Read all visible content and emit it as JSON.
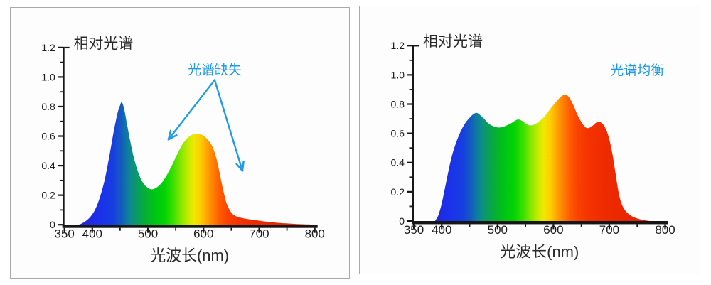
{
  "style": {
    "axis_color": "#161616",
    "tick_label_color": "#1c1c1c",
    "title_color": "#2a2a2a",
    "accent_blue": "#1E9BE4",
    "panel_border": "#a9a9a9",
    "panel_bg": "#fdfdfd"
  },
  "spectrum_gradient": [
    {
      "wl": 350,
      "c": "#2B28C6"
    },
    {
      "wl": 388,
      "c": "#2027D8"
    },
    {
      "wl": 412,
      "c": "#1B31EC"
    },
    {
      "wl": 438,
      "c": "#173EE0"
    },
    {
      "wl": 452,
      "c": "#135CBE"
    },
    {
      "wl": 463,
      "c": "#0F7CA2"
    },
    {
      "wl": 473,
      "c": "#0C917E"
    },
    {
      "wl": 484,
      "c": "#08A156"
    },
    {
      "wl": 496,
      "c": "#04B133"
    },
    {
      "wl": 512,
      "c": "#00C414"
    },
    {
      "wl": 530,
      "c": "#02D403"
    },
    {
      "wl": 546,
      "c": "#3CE000"
    },
    {
      "wl": 561,
      "c": "#8EE800"
    },
    {
      "wl": 573,
      "c": "#C8EB00"
    },
    {
      "wl": 583,
      "c": "#F0E800"
    },
    {
      "wl": 595,
      "c": "#FFCC00"
    },
    {
      "wl": 606,
      "c": "#FFA500"
    },
    {
      "wl": 617,
      "c": "#FF8000"
    },
    {
      "wl": 629,
      "c": "#FF5C00"
    },
    {
      "wl": 643,
      "c": "#FA4300"
    },
    {
      "wl": 662,
      "c": "#F43300"
    },
    {
      "wl": 695,
      "c": "#EE2A00"
    },
    {
      "wl": 740,
      "c": "#E82500"
    },
    {
      "wl": 800,
      "c": "#E32200"
    }
  ],
  "chart_data": [
    {
      "type": "area",
      "title": "相对光谱",
      "xlabel": "光波长(nm)",
      "ylabel": "",
      "xlim": [
        350,
        800
      ],
      "ylim": [
        0,
        1.2
      ],
      "grid": false,
      "x_major_ticks": [
        350,
        400,
        500,
        600,
        700,
        800
      ],
      "x_minor_ticks": [
        450,
        550,
        650,
        750
      ],
      "y_major_ticks": [
        0,
        0.2,
        0.4,
        0.6,
        0.8,
        1.0,
        1.2
      ],
      "y_tick_labels": [
        "0",
        "0.2",
        "0.4",
        "0.6",
        "0.8",
        "1.0",
        "1.2"
      ],
      "y_minor_ticks": [
        0.1,
        0.3,
        0.5,
        0.7,
        0.9,
        1.1
      ],
      "annotation": {
        "text": "光谱缺失",
        "pos": [
          620,
          1.05
        ],
        "arrows": [
          {
            "from": [
              620,
              0.98
            ],
            "to": [
              537,
              0.577
            ]
          },
          {
            "from": [
              620,
              0.98
            ],
            "to": [
              670,
              0.365
            ]
          }
        ]
      },
      "series": [
        {
          "name": "spectrum-with-gaps",
          "points": [
            [
              375,
              0
            ],
            [
              382,
              0.01
            ],
            [
              390,
              0.03
            ],
            [
              398,
              0.06
            ],
            [
              406,
              0.11
            ],
            [
              414,
              0.19
            ],
            [
              422,
              0.3
            ],
            [
              430,
              0.45
            ],
            [
              438,
              0.62
            ],
            [
              445,
              0.75
            ],
            [
              450,
              0.81
            ],
            [
              453,
              0.83
            ],
            [
              457,
              0.79
            ],
            [
              462,
              0.69
            ],
            [
              468,
              0.57
            ],
            [
              475,
              0.45
            ],
            [
              483,
              0.35
            ],
            [
              492,
              0.28
            ],
            [
              500,
              0.25
            ],
            [
              507,
              0.24
            ],
            [
              515,
              0.25
            ],
            [
              524,
              0.28
            ],
            [
              533,
              0.33
            ],
            [
              543,
              0.4
            ],
            [
              553,
              0.48
            ],
            [
              563,
              0.55
            ],
            [
              572,
              0.59
            ],
            [
              580,
              0.61
            ],
            [
              588,
              0.615
            ],
            [
              596,
              0.61
            ],
            [
              604,
              0.59
            ],
            [
              611,
              0.56
            ],
            [
              617,
              0.52
            ],
            [
              623,
              0.45
            ],
            [
              629,
              0.35
            ],
            [
              635,
              0.24
            ],
            [
              641,
              0.15
            ],
            [
              647,
              0.1
            ],
            [
              653,
              0.07
            ],
            [
              660,
              0.055
            ],
            [
              670,
              0.045
            ],
            [
              682,
              0.037
            ],
            [
              695,
              0.03
            ],
            [
              710,
              0.022
            ],
            [
              728,
              0.015
            ],
            [
              748,
              0.009
            ],
            [
              768,
              0.005
            ],
            [
              788,
              0.002
            ],
            [
              798,
              0
            ]
          ]
        }
      ]
    },
    {
      "type": "area",
      "title": "相对光谱",
      "xlabel": "光波长(nm)",
      "ylabel": "",
      "xlim": [
        350,
        800
      ],
      "ylim": [
        0,
        1.2
      ],
      "grid": false,
      "x_major_ticks": [
        350,
        400,
        500,
        600,
        700,
        800
      ],
      "x_minor_ticks": [
        450,
        550,
        650,
        750
      ],
      "y_major_ticks": [
        0,
        0.2,
        0.4,
        0.6,
        0.8,
        1.0,
        1.2
      ],
      "y_tick_labels": [
        "0",
        "0.2",
        "0.4",
        "0.6",
        "0.8",
        "1.0",
        "1.2"
      ],
      "y_minor_ticks": [
        0.1,
        0.3,
        0.5,
        0.7,
        0.9,
        1.1
      ],
      "annotation": {
        "text": "光谱均衡",
        "pos": [
          750,
          1.03
        ],
        "arrows": []
      },
      "series": [
        {
          "name": "balanced-spectrum",
          "points": [
            [
              388,
              0
            ],
            [
              394,
              0.04
            ],
            [
              400,
              0.12
            ],
            [
              406,
              0.23
            ],
            [
              413,
              0.36
            ],
            [
              420,
              0.47
            ],
            [
              428,
              0.56
            ],
            [
              436,
              0.63
            ],
            [
              444,
              0.68
            ],
            [
              452,
              0.715
            ],
            [
              458,
              0.735
            ],
            [
              463,
              0.74
            ],
            [
              469,
              0.725
            ],
            [
              476,
              0.7
            ],
            [
              483,
              0.67
            ],
            [
              490,
              0.653
            ],
            [
              497,
              0.643
            ],
            [
              503,
              0.64
            ],
            [
              510,
              0.645
            ],
            [
              518,
              0.657
            ],
            [
              526,
              0.673
            ],
            [
              533,
              0.69
            ],
            [
              538,
              0.695
            ],
            [
              544,
              0.685
            ],
            [
              550,
              0.668
            ],
            [
              556,
              0.656
            ],
            [
              561,
              0.655
            ],
            [
              567,
              0.663
            ],
            [
              574,
              0.68
            ],
            [
              582,
              0.707
            ],
            [
              590,
              0.745
            ],
            [
              598,
              0.785
            ],
            [
              606,
              0.822
            ],
            [
              613,
              0.85
            ],
            [
              619,
              0.863
            ],
            [
              624,
              0.862
            ],
            [
              630,
              0.835
            ],
            [
              636,
              0.79
            ],
            [
              642,
              0.735
            ],
            [
              648,
              0.69
            ],
            [
              654,
              0.655
            ],
            [
              659,
              0.638
            ],
            [
              664,
              0.638
            ],
            [
              670,
              0.652
            ],
            [
              676,
              0.672
            ],
            [
              681,
              0.68
            ],
            [
              686,
              0.672
            ],
            [
              691,
              0.65
            ],
            [
              696,
              0.61
            ],
            [
              701,
              0.545
            ],
            [
              706,
              0.45
            ],
            [
              711,
              0.33
            ],
            [
              716,
              0.21
            ],
            [
              721,
              0.13
            ],
            [
              727,
              0.08
            ],
            [
              734,
              0.05
            ],
            [
              742,
              0.03
            ],
            [
              752,
              0.015
            ],
            [
              762,
              0.006
            ],
            [
              772,
              0
            ]
          ]
        }
      ]
    }
  ]
}
